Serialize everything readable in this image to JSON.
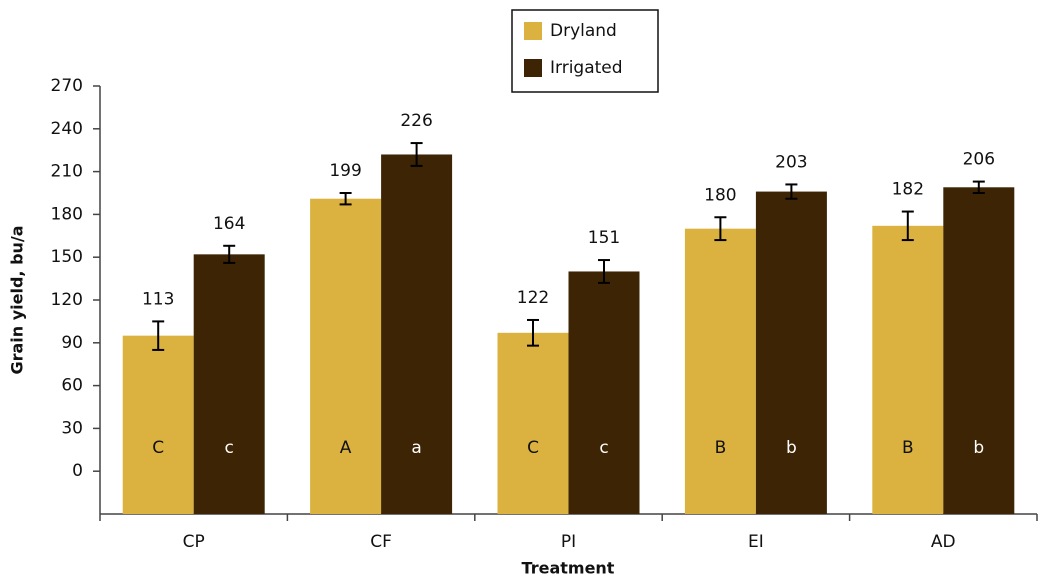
{
  "chart_data": {
    "type": "bar",
    "xlabel": "Treatment",
    "ylabel": "Grain yield, bu/a",
    "categories": [
      "CP",
      "CF",
      "PI",
      "EI",
      "AD"
    ],
    "series": [
      {
        "name": "Dryland",
        "color": "#dbb240",
        "values": [
          95,
          191,
          97,
          170,
          172
        ],
        "errors": [
          10,
          4,
          9,
          8,
          10
        ],
        "top_labels": [
          113,
          199,
          122,
          180,
          182
        ],
        "letters": [
          "C",
          "A",
          "C",
          "B",
          "B"
        ]
      },
      {
        "name": "Irrigated",
        "color": "#3d2405",
        "values": [
          152,
          222,
          140,
          196,
          199
        ],
        "errors": [
          6,
          8,
          8,
          5,
          4
        ],
        "top_labels": [
          164,
          226,
          151,
          203,
          206
        ],
        "letters": [
          "c",
          "a",
          "c",
          "b",
          "b"
        ]
      }
    ],
    "ylim": [
      -30,
      270
    ],
    "yticks": [
      0,
      30,
      60,
      90,
      120,
      150,
      180,
      210,
      240,
      270
    ]
  }
}
